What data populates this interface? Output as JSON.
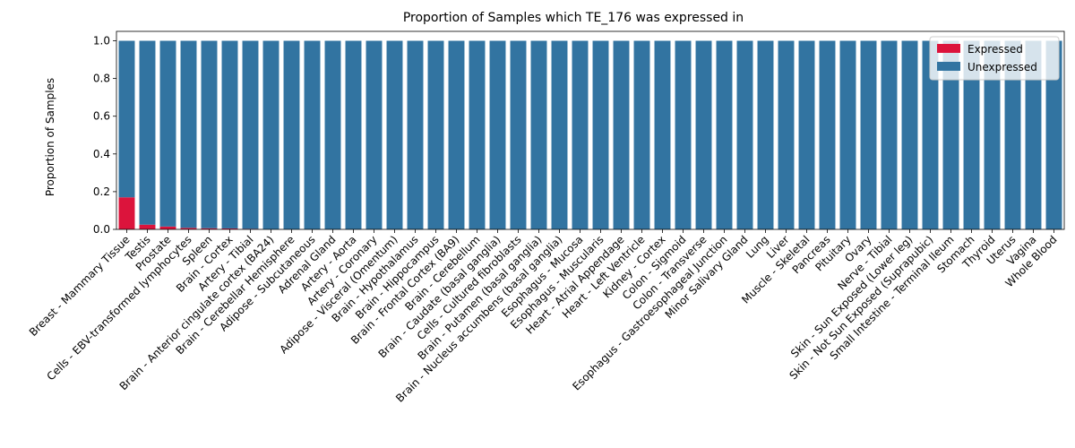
{
  "chart_data": {
    "type": "bar",
    "stacked": true,
    "title": "Proportion of Samples which TE_176 was expressed in",
    "xlabel": "",
    "ylabel": "Proportion of Samples",
    "ylim": [
      0,
      1.05
    ],
    "yticks": [
      "0.0",
      "0.2",
      "0.4",
      "0.6",
      "0.8",
      "1.0"
    ],
    "grid": false,
    "legend_position": "top-right",
    "categories": [
      "Breast - Mammary Tissue",
      "Testis",
      "Prostate",
      "Cells - EBV-transformed lymphocytes",
      "Spleen",
      "Brain - Cortex",
      "Artery - Tibial",
      "Brain - Anterior cingulate cortex (BA24)",
      "Brain - Cerebellar Hemisphere",
      "Adipose - Subcutaneous",
      "Adrenal Gland",
      "Artery - Aorta",
      "Artery - Coronary",
      "Adipose - Visceral (Omentum)",
      "Brain - Hypothalamus",
      "Brain - Hippocampus",
      "Brain - Frontal Cortex (BA9)",
      "Brain - Cerebellum",
      "Brain - Caudate (basal ganglia)",
      "Cells - Cultured fibroblasts",
      "Brain - Putamen (basal ganglia)",
      "Brain - Nucleus accumbens (basal ganglia)",
      "Esophagus - Mucosa",
      "Esophagus - Muscularis",
      "Heart - Atrial Appendage",
      "Heart - Left Ventricle",
      "Kidney - Cortex",
      "Colon - Sigmoid",
      "Colon - Transverse",
      "Esophagus - Gastroesophageal Junction",
      "Minor Salivary Gland",
      "Lung",
      "Liver",
      "Muscle - Skeletal",
      "Pancreas",
      "Pituitary",
      "Ovary",
      "Nerve - Tibial",
      "Skin - Sun Exposed (Lower leg)",
      "Skin - Not Sun Exposed (Suprapubic)",
      "Small Intestine - Terminal Ileum",
      "Stomach",
      "Thyroid",
      "Uterus",
      "Vagina",
      "Whole Blood"
    ],
    "series": [
      {
        "name": "Expressed",
        "color": "#dc143c",
        "values": [
          0.17,
          0.025,
          0.015,
          0.008,
          0.006,
          0.005,
          0.003,
          0,
          0,
          0,
          0,
          0,
          0,
          0,
          0,
          0,
          0,
          0,
          0,
          0,
          0,
          0,
          0,
          0,
          0,
          0,
          0,
          0,
          0,
          0,
          0,
          0,
          0,
          0,
          0,
          0,
          0,
          0,
          0,
          0,
          0,
          0,
          0,
          0,
          0,
          0
        ]
      },
      {
        "name": "Unexpressed",
        "color": "#3274a1",
        "values": [
          0.83,
          0.975,
          0.985,
          0.992,
          0.994,
          0.995,
          0.997,
          1,
          1,
          1,
          1,
          1,
          1,
          1,
          1,
          1,
          1,
          1,
          1,
          1,
          1,
          1,
          1,
          1,
          1,
          1,
          1,
          1,
          1,
          1,
          1,
          1,
          1,
          1,
          1,
          1,
          1,
          1,
          1,
          1,
          1,
          1,
          1,
          1,
          1,
          1
        ]
      }
    ]
  }
}
